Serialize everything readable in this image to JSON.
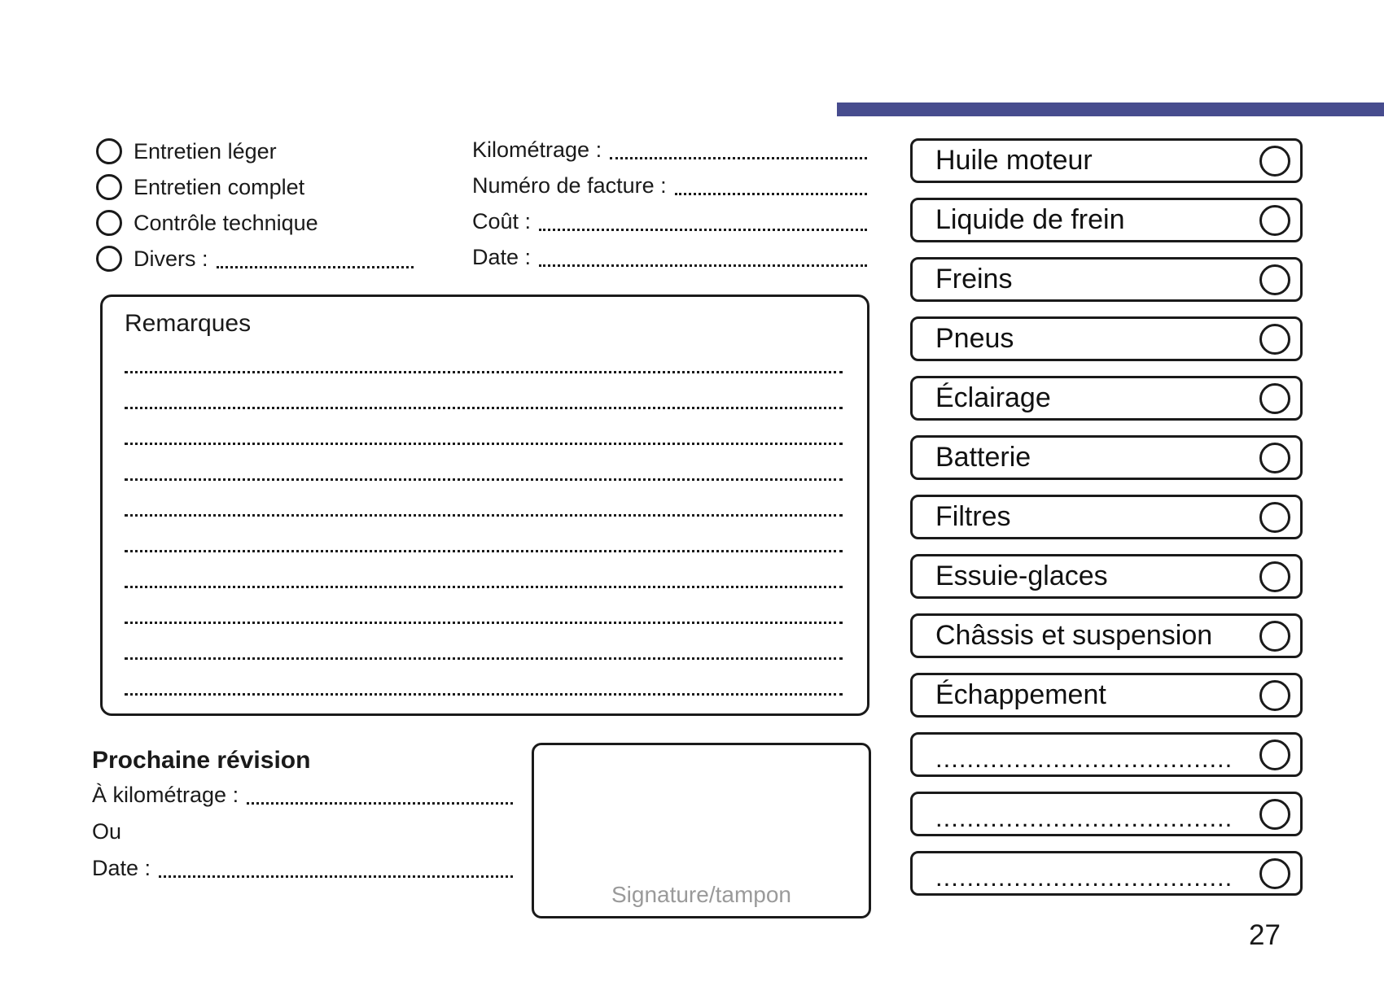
{
  "page": {
    "number": "27",
    "accent_color": "#474c8e",
    "ink_color": "#1a1a1a"
  },
  "service_type": {
    "options": [
      {
        "label": "Entretien léger"
      },
      {
        "label": "Entretien complet"
      },
      {
        "label": "Contrôle technique"
      },
      {
        "label": "Divers :"
      }
    ]
  },
  "invoice_fields": {
    "fields": [
      {
        "label": "Kilométrage :"
      },
      {
        "label": "Numéro de facture :"
      },
      {
        "label": "Coût :"
      },
      {
        "label": "Date :"
      }
    ]
  },
  "remarks": {
    "title": "Remarques",
    "line_count": 10
  },
  "next_service": {
    "title": "Prochaine révision",
    "fields": [
      {
        "label": "À kilométrage :"
      },
      {
        "label": "Ou"
      },
      {
        "label": "Date :"
      }
    ]
  },
  "signature": {
    "label": "Signature/tampon"
  },
  "checklist": {
    "items": [
      {
        "label": "Huile moteur"
      },
      {
        "label": "Liquide de frein"
      },
      {
        "label": "Freins"
      },
      {
        "label": "Pneus"
      },
      {
        "label": "Éclairage"
      },
      {
        "label": "Batterie"
      },
      {
        "label": "Filtres"
      },
      {
        "label": "Essuie-glaces"
      },
      {
        "label": "Châssis et suspension"
      },
      {
        "label": "Échappement"
      },
      {
        "label": "......................................"
      },
      {
        "label": "......................................"
      },
      {
        "label": "......................................"
      }
    ]
  }
}
